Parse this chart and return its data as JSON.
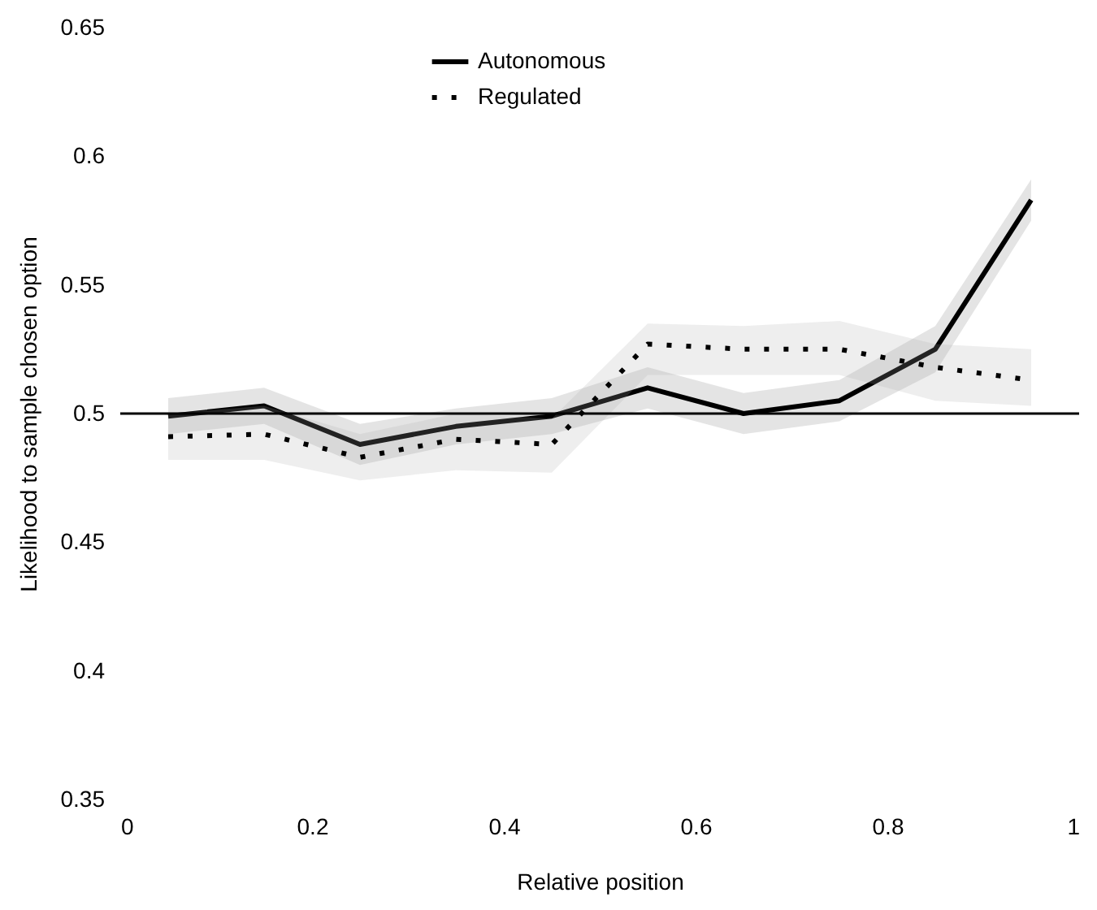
{
  "chart_data": {
    "type": "line",
    "xlabel": "Relative position",
    "ylabel": "Likelihood to sample chosen option",
    "x": [
      0.05,
      0.15,
      0.25,
      0.35,
      0.45,
      0.55,
      0.65,
      0.75,
      0.85,
      0.95
    ],
    "series": [
      {
        "name": "Autonomous",
        "color": "#000000",
        "line_style": "solid",
        "values": [
          0.499,
          0.503,
          0.488,
          0.495,
          0.499,
          0.51,
          0.5,
          0.505,
          0.525,
          0.583
        ],
        "lower": [
          0.492,
          0.496,
          0.48,
          0.488,
          0.492,
          0.502,
          0.492,
          0.497,
          0.516,
          0.575
        ],
        "upper": [
          0.506,
          0.51,
          0.496,
          0.502,
          0.506,
          0.518,
          0.508,
          0.513,
          0.534,
          0.591
        ]
      },
      {
        "name": "Regulated",
        "color": "#000000",
        "line_style": "dotted",
        "values": [
          0.491,
          0.492,
          0.483,
          0.49,
          0.488,
          0.527,
          0.525,
          0.525,
          0.518,
          0.513
        ],
        "lower": [
          0.482,
          0.482,
          0.474,
          0.478,
          0.477,
          0.515,
          0.515,
          0.515,
          0.505,
          0.503
        ],
        "upper": [
          0.5,
          0.503,
          0.492,
          0.5,
          0.498,
          0.535,
          0.534,
          0.536,
          0.527,
          0.525
        ]
      }
    ],
    "xlim": [
      0,
      1
    ],
    "xticks": [
      0,
      0.2,
      0.4,
      0.6,
      0.8,
      1
    ],
    "ylim": [
      0.35,
      0.65
    ],
    "yticks": [
      0.35,
      {
        "value": 0.4,
        "label": "0.4"
      },
      0.45,
      {
        "value": 0.5,
        "label": "0.5"
      },
      0.55,
      {
        "value": 0.6,
        "label": "0.6"
      },
      0.65
    ],
    "ref_lines": [
      {
        "axis": "y",
        "value": 0.5,
        "color": "#000000"
      }
    ],
    "grid": false,
    "legend": "top"
  }
}
